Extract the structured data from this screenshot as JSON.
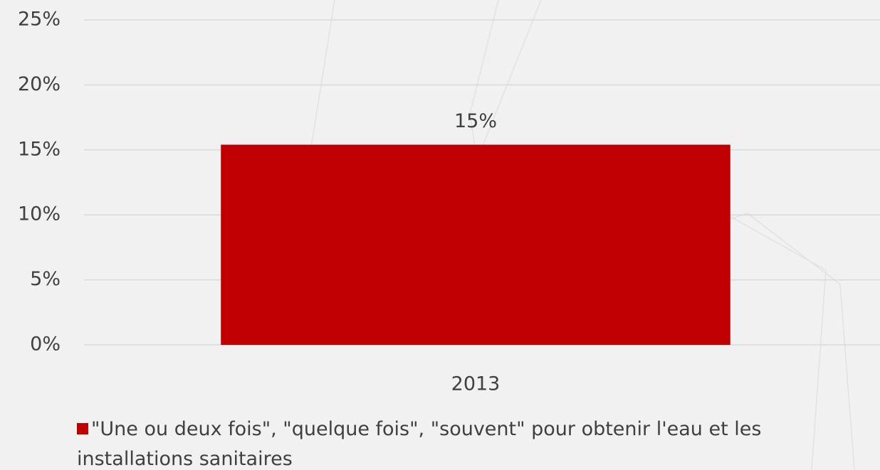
{
  "chart_data": {
    "type": "bar",
    "categories": [
      "2013"
    ],
    "series": [
      {
        "name": "\"Une ou deux fois\", \"quelque fois\", \"souvent\" pour obtenir l'eau et les installations sanitaires",
        "color": "#c00000",
        "values": [
          15.4
        ],
        "value_labels": [
          "15%"
        ]
      }
    ],
    "ylim": [
      0,
      25
    ],
    "yticks": [
      {
        "value": 0,
        "label": "0%"
      },
      {
        "value": 5,
        "label": "5%"
      },
      {
        "value": 10,
        "label": "10%"
      },
      {
        "value": 15,
        "label": "15%"
      },
      {
        "value": 20,
        "label": "20%"
      },
      {
        "value": 25,
        "label": "25%"
      }
    ],
    "grid": true,
    "legend": "bottom"
  }
}
